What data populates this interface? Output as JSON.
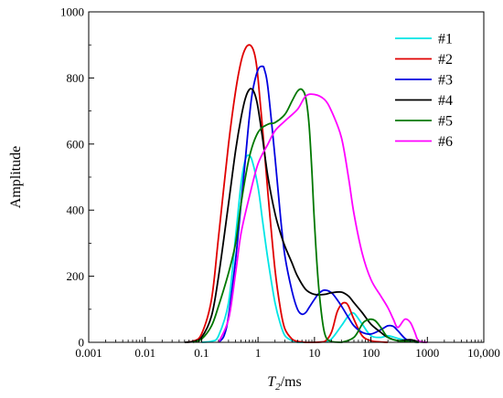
{
  "chart_data": {
    "type": "line",
    "xscale": "log",
    "xlim": [
      0.001,
      10000
    ],
    "ylim": [
      0,
      1000
    ],
    "xlabel_main": "T",
    "xlabel_sub": "2",
    "xlabel_rest": "/ms",
    "ylabel": "Amplitude",
    "xticks": [
      {
        "value": 0.001,
        "label": "0.001"
      },
      {
        "value": 0.01,
        "label": "0.01"
      },
      {
        "value": 0.1,
        "label": "0.1"
      },
      {
        "value": 1,
        "label": "1"
      },
      {
        "value": 10,
        "label": "10"
      },
      {
        "value": 100,
        "label": "100"
      },
      {
        "value": 1000,
        "label": "1000"
      },
      {
        "value": 10000,
        "label": "10,000"
      }
    ],
    "yticks": [
      {
        "value": 0,
        "label": "0"
      },
      {
        "value": 200,
        "label": "200"
      },
      {
        "value": 400,
        "label": "400"
      },
      {
        "value": 600,
        "label": "600"
      },
      {
        "value": 800,
        "label": "800"
      },
      {
        "value": 1000,
        "label": "1000"
      }
    ],
    "legend_position": "top-right",
    "series": [
      {
        "name": "#1",
        "color": "#00e5e5",
        "x": [
          0.1,
          0.15,
          0.2,
          0.3,
          0.4,
          0.5,
          0.6,
          0.7,
          0.8,
          1.0,
          1.2,
          1.5,
          2,
          2.5,
          3,
          4,
          5,
          7,
          10,
          15,
          20,
          30,
          40,
          50,
          70,
          100,
          150,
          200,
          300,
          500,
          700
        ],
        "y": [
          0,
          3,
          20,
          120,
          320,
          480,
          555,
          565,
          545,
          470,
          370,
          250,
          120,
          55,
          20,
          5,
          0,
          0,
          0,
          2,
          10,
          50,
          80,
          88,
          55,
          20,
          15,
          20,
          12,
          3,
          0
        ]
      },
      {
        "name": "#2",
        "color": "#e00000",
        "x": [
          0.05,
          0.07,
          0.1,
          0.15,
          0.2,
          0.3,
          0.4,
          0.5,
          0.6,
          0.7,
          0.8,
          0.9,
          1.0,
          1.2,
          1.5,
          2,
          2.5,
          3,
          4,
          5,
          7,
          10,
          15,
          20,
          25,
          30,
          35,
          40,
          50,
          70,
          100,
          150,
          200
        ],
        "y": [
          0,
          3,
          25,
          130,
          320,
          600,
          760,
          850,
          890,
          900,
          890,
          860,
          800,
          650,
          450,
          220,
          100,
          40,
          10,
          3,
          0,
          0,
          2,
          30,
          90,
          115,
          120,
          110,
          70,
          20,
          5,
          1,
          0
        ]
      },
      {
        "name": "#3",
        "color": "#0000e0",
        "x": [
          0.2,
          0.25,
          0.3,
          0.4,
          0.5,
          0.6,
          0.7,
          0.8,
          1.0,
          1.2,
          1.3,
          1.5,
          2,
          2.5,
          3,
          4,
          5,
          6,
          7,
          8,
          10,
          12,
          15,
          20,
          25,
          30,
          40,
          50,
          70,
          100,
          150,
          200,
          250,
          300,
          400,
          500,
          700
        ],
        "y": [
          0,
          20,
          80,
          250,
          420,
          560,
          680,
          760,
          825,
          835,
          825,
          770,
          560,
          380,
          260,
          155,
          100,
          85,
          90,
          105,
          130,
          148,
          158,
          150,
          130,
          110,
          75,
          50,
          30,
          25,
          38,
          50,
          48,
          35,
          12,
          3,
          0
        ]
      },
      {
        "name": "#4",
        "color": "#000000",
        "x": [
          0.05,
          0.07,
          0.1,
          0.15,
          0.2,
          0.3,
          0.4,
          0.5,
          0.6,
          0.7,
          0.8,
          0.9,
          1.0,
          1.2,
          1.5,
          2,
          2.5,
          3,
          4,
          5,
          7,
          10,
          15,
          20,
          30,
          40,
          50,
          70,
          100,
          150,
          200,
          300,
          500,
          700,
          1000
        ],
        "y": [
          0,
          2,
          15,
          80,
          200,
          420,
          580,
          680,
          740,
          765,
          765,
          745,
          710,
          620,
          500,
          390,
          330,
          290,
          240,
          200,
          160,
          145,
          145,
          150,
          152,
          140,
          120,
          90,
          55,
          30,
          15,
          5,
          8,
          2,
          0
        ]
      },
      {
        "name": "#5",
        "color": "#007800",
        "x": [
          0.07,
          0.1,
          0.15,
          0.2,
          0.3,
          0.4,
          0.5,
          0.7,
          1.0,
          1.5,
          2,
          3,
          4,
          5,
          6,
          7,
          8,
          9,
          10,
          12,
          15,
          20,
          30,
          50,
          70,
          80,
          100,
          120,
          150,
          200,
          300,
          500,
          700
        ],
        "y": [
          0,
          10,
          50,
          110,
          210,
          300,
          420,
          560,
          635,
          660,
          665,
          690,
          730,
          760,
          765,
          740,
          660,
          520,
          360,
          160,
          30,
          2,
          0,
          15,
          55,
          65,
          70,
          65,
          45,
          15,
          5,
          2,
          0
        ]
      },
      {
        "name": "#6",
        "color": "#ff00ff",
        "x": [
          0.2,
          0.3,
          0.4,
          0.5,
          0.7,
          1.0,
          1.5,
          2,
          3,
          5,
          7,
          10,
          15,
          20,
          30,
          40,
          50,
          70,
          100,
          150,
          200,
          250,
          300,
          400,
          500,
          600,
          700,
          1000
        ],
        "y": [
          0,
          70,
          210,
          330,
          440,
          540,
          600,
          640,
          670,
          705,
          745,
          750,
          735,
          700,
          620,
          500,
          390,
          270,
          190,
          140,
          105,
          70,
          45,
          70,
          60,
          30,
          5,
          0
        ]
      }
    ]
  }
}
